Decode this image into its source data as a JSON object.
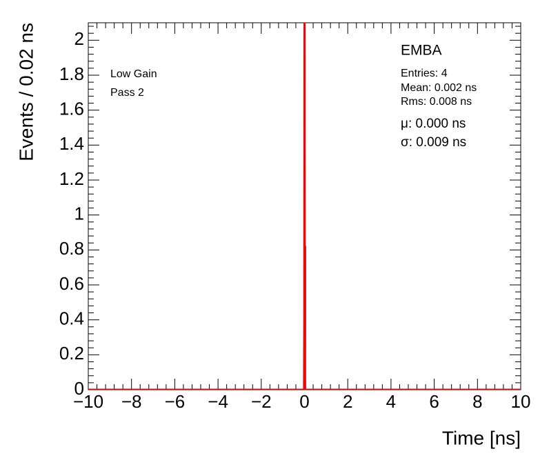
{
  "chart_data": {
    "type": "histogram",
    "x_label": "Time [ns]",
    "y_label": "Events / 0.02 ns",
    "annotations": [
      "EMBA",
      "Entries: 4",
      "Mean: 0.002 ns",
      "Rms: 0.008 ns",
      "μ: 0.000 ns",
      "σ: 0.009 ns",
      "Low Gain",
      "Pass 2"
    ],
    "bins": [
      -0.02,
      0,
      0.02
    ],
    "values": [
      0.4,
      0.82
    ],
    "color": "#000000",
    "fit": {
      "name": "Gaussian fit",
      "color": "#ff0000",
      "x": [
        -10,
        -0.02,
        -0.01,
        0,
        0.01,
        0.02,
        10
      ],
      "values": [
        0,
        0,
        0.42,
        2.1,
        0.42,
        0,
        0
      ]
    },
    "xlim": [
      -10,
      10
    ],
    "ylim": [
      0,
      2.1
    ],
    "xticks": [
      {
        "value": -10,
        "label": "−10"
      },
      {
        "value": -8,
        "label": "−8"
      },
      {
        "value": -6,
        "label": "−6"
      },
      {
        "value": -4,
        "label": "−4"
      },
      {
        "value": -2,
        "label": "−2"
      },
      0,
      2,
      4,
      6,
      8,
      10
    ],
    "yticks": [
      0,
      0.2,
      0.4,
      0.6,
      0.8,
      1,
      1.2,
      1.4,
      1.6,
      1.8,
      2
    ]
  }
}
